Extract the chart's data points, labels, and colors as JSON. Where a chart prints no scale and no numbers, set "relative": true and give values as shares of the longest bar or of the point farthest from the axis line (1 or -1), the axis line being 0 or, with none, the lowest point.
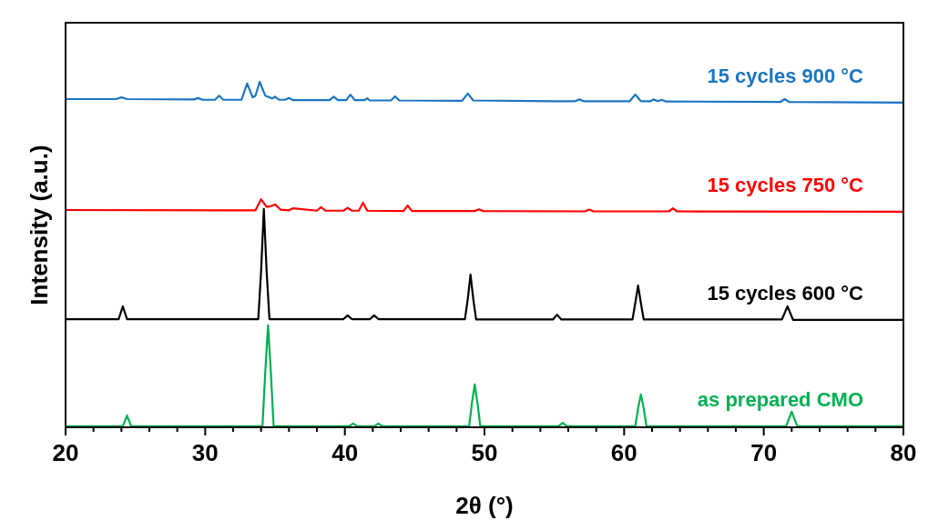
{
  "chart_data": {
    "type": "line",
    "relative": true,
    "xlabel": "2θ (°)",
    "ylabel": "Intensity (a.u.)",
    "xlim": [
      20,
      80
    ],
    "xticks": [
      20,
      {
        "value": 22,
        "label": null
      },
      {
        "value": 24,
        "label": null
      },
      {
        "value": 26,
        "label": null
      },
      {
        "value": 28,
        "label": null
      },
      30,
      {
        "value": 32,
        "label": null
      },
      {
        "value": 34,
        "label": null
      },
      {
        "value": 36,
        "label": null
      },
      {
        "value": 38,
        "label": null
      },
      40,
      {
        "value": 42,
        "label": null
      },
      {
        "value": 44,
        "label": null
      },
      {
        "value": 46,
        "label": null
      },
      {
        "value": 48,
        "label": null
      },
      50,
      {
        "value": 52,
        "label": null
      },
      {
        "value": 54,
        "label": null
      },
      {
        "value": 56,
        "label": null
      },
      {
        "value": 58,
        "label": null
      },
      60,
      {
        "value": 62,
        "label": null
      },
      {
        "value": 64,
        "label": null
      },
      {
        "value": 66,
        "label": null
      },
      {
        "value": 68,
        "label": null
      },
      70,
      {
        "value": 72,
        "label": null
      },
      {
        "value": 74,
        "label": null
      },
      {
        "value": 76,
        "label": null
      },
      {
        "value": 78,
        "label": null
      },
      80
    ],
    "legend": false,
    "grid": false,
    "marker": "none",
    "line_style": "solid",
    "series": [
      {
        "name": "as prepared CMO",
        "color": "#00b050",
        "x": [
          20,
          24.1,
          24.4,
          24.7,
          34.1,
          34.3,
          34.5,
          34.7,
          34.9,
          40.3,
          40.6,
          40.9,
          42.1,
          42.4,
          42.7,
          48.9,
          49.1,
          49.3,
          49.5,
          49.7,
          55.3,
          55.6,
          55.9,
          60.8,
          61,
          61.2,
          61.4,
          61.6,
          71.6,
          72,
          72.4,
          80
        ],
        "values": [
          0.003,
          0.003,
          0.034,
          0.003,
          0.003,
          0.16,
          0.295,
          0.16,
          0.003,
          0.003,
          0.011,
          0.003,
          0.003,
          0.011,
          0.003,
          0.003,
          0.07,
          0.124,
          0.07,
          0.003,
          0.003,
          0.013,
          0.003,
          0.003,
          0.055,
          0.095,
          0.055,
          0.003,
          0.003,
          0.045,
          0.003,
          0.003
        ]
      },
      {
        "name": "15 cycles 600 °C",
        "color": "#000000",
        "x": [
          20,
          23.8,
          24.1,
          24.4,
          33.8,
          34,
          34.2,
          34.4,
          34.6,
          39.9,
          40.2,
          40.5,
          41.8,
          42.1,
          42.4,
          48.6,
          48.8,
          49,
          49.2,
          49.4,
          54.9,
          55.2,
          55.5,
          60.6,
          60.8,
          61,
          61.2,
          61.4,
          71.3,
          71.7,
          72.1,
          80
        ],
        "values": [
          0.313,
          0.313,
          0.35,
          0.313,
          0.313,
          0.45,
          0.632,
          0.45,
          0.313,
          0.313,
          0.324,
          0.313,
          0.313,
          0.324,
          0.313,
          0.313,
          0.37,
          0.442,
          0.37,
          0.312,
          0.312,
          0.326,
          0.312,
          0.312,
          0.36,
          0.41,
          0.36,
          0.312,
          0.312,
          0.35,
          0.311,
          0.311
        ]
      },
      {
        "name": "15 cycles 750 °C",
        "color": "#ff0000",
        "x": [
          20,
          33.6,
          34,
          34.4,
          34.7,
          35,
          35.4,
          36,
          36.3,
          38,
          38.3,
          38.6,
          39.9,
          40.2,
          40.5,
          41,
          41.3,
          41.6,
          44.2,
          44.5,
          44.8,
          49.3,
          49.6,
          49.9,
          57.2,
          57.5,
          57.8,
          63.2,
          63.5,
          63.8,
          80
        ],
        "values": [
          0.629,
          0.628,
          0.66,
          0.638,
          0.64,
          0.645,
          0.63,
          0.628,
          0.634,
          0.627,
          0.637,
          0.627,
          0.627,
          0.635,
          0.627,
          0.627,
          0.65,
          0.627,
          0.626,
          0.642,
          0.626,
          0.626,
          0.631,
          0.626,
          0.625,
          0.63,
          0.625,
          0.625,
          0.634,
          0.625,
          0.624
        ]
      },
      {
        "name": "15 cycles 900 °C",
        "color": "#1a75c2",
        "x": [
          20,
          23.6,
          24,
          24.4,
          29.2,
          29.5,
          29.8,
          30.7,
          31,
          31.3,
          32.6,
          33,
          33.4,
          33.6,
          33.9,
          34.3,
          34.8,
          35,
          35.3,
          35.7,
          36,
          36.3,
          38.9,
          39.2,
          39.5,
          40.1,
          40.4,
          40.7,
          41.4,
          41.6,
          41.8,
          43.3,
          43.6,
          43.9,
          48.4,
          48.8,
          49.2,
          55,
          56.5,
          56.8,
          57.1,
          60.4,
          60.8,
          61.2,
          61.9,
          62.1,
          62.4,
          62.7,
          63,
          71.2,
          71.5,
          71.8,
          80
        ],
        "values": [
          0.95,
          0.95,
          0.955,
          0.95,
          0.949,
          0.953,
          0.948,
          0.948,
          0.96,
          0.948,
          0.948,
          0.995,
          0.955,
          0.96,
          1,
          0.96,
          0.952,
          0.957,
          0.948,
          0.948,
          0.953,
          0.947,
          0.947,
          0.957,
          0.947,
          0.947,
          0.963,
          0.947,
          0.947,
          0.952,
          0.946,
          0.946,
          0.958,
          0.946,
          0.945,
          0.966,
          0.946,
          0.944,
          0.944,
          0.949,
          0.944,
          0.944,
          0.963,
          0.944,
          0.944,
          0.949,
          0.944,
          0.948,
          0.943,
          0.942,
          0.95,
          0.942,
          0.94
        ]
      }
    ]
  }
}
